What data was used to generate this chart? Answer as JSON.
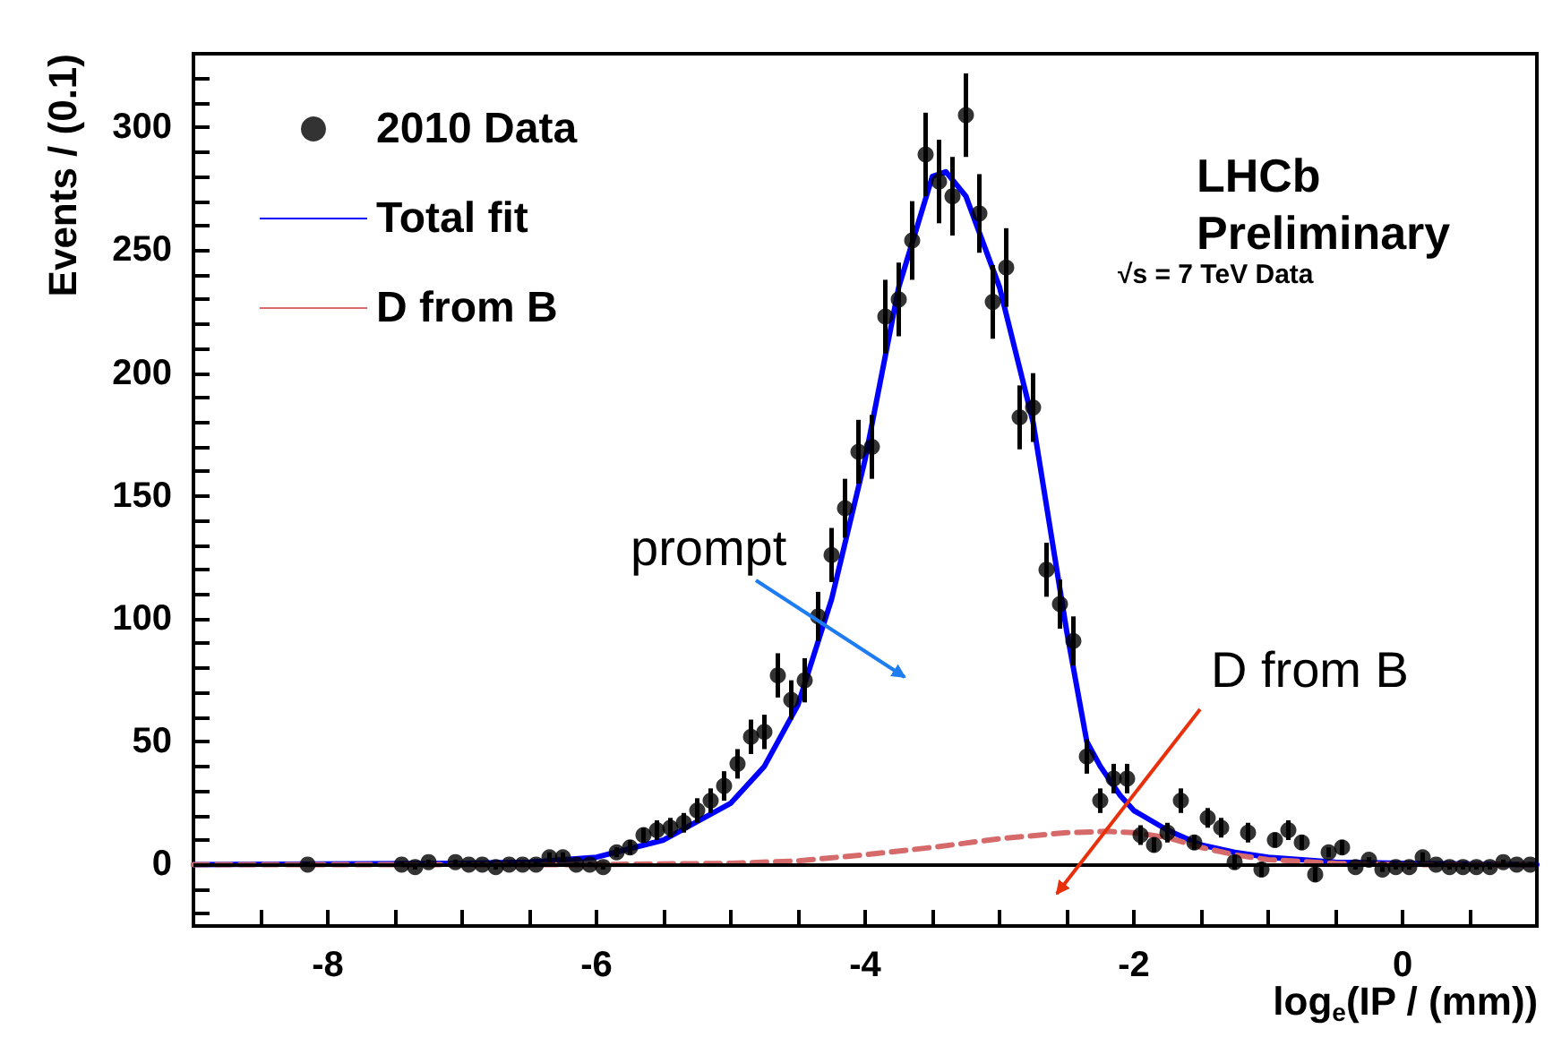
{
  "chart_data": {
    "type": "scatter",
    "xlabel": "log$_{e}$(IP / (mm))",
    "ylabel": "Events / (0.1)",
    "xlim": [
      -9,
      1
    ],
    "ylim": [
      -25,
      330
    ],
    "xticks": [
      {
        "value": -8.5,
        "label": null
      },
      -8,
      {
        "value": -7.5,
        "label": null
      },
      {
        "value": -7,
        "label": null
      },
      {
        "value": -6.5,
        "label": null
      },
      -6,
      {
        "value": -5.5,
        "label": null
      },
      {
        "value": -5,
        "label": null
      },
      {
        "value": -4.5,
        "label": null
      },
      -4,
      {
        "value": -3.5,
        "label": null
      },
      {
        "value": -3,
        "label": null
      },
      {
        "value": -2.5,
        "label": null
      },
      -2,
      {
        "value": -1.5,
        "label": null
      },
      {
        "value": -1,
        "label": null
      },
      {
        "value": -0.5,
        "label": null
      },
      0,
      {
        "value": 0.5,
        "label": null
      }
    ],
    "yticks": [
      {
        "value": -20,
        "label": null
      },
      {
        "value": -10,
        "label": null
      },
      0,
      {
        "value": 10,
        "label": null
      },
      {
        "value": 20,
        "label": null
      },
      {
        "value": 30,
        "label": null
      },
      {
        "value": 40,
        "label": null
      },
      50,
      {
        "value": 60,
        "label": null
      },
      {
        "value": 70,
        "label": null
      },
      {
        "value": 80,
        "label": null
      },
      {
        "value": 90,
        "label": null
      },
      100,
      {
        "value": 110,
        "label": null
      },
      {
        "value": 120,
        "label": null
      },
      {
        "value": 130,
        "label": null
      },
      {
        "value": 140,
        "label": null
      },
      150,
      {
        "value": 160,
        "label": null
      },
      {
        "value": 170,
        "label": null
      },
      {
        "value": 180,
        "label": null
      },
      {
        "value": 190,
        "label": null
      },
      200,
      {
        "value": 210,
        "label": null
      },
      {
        "value": 220,
        "label": null
      },
      {
        "value": 230,
        "label": null
      },
      {
        "value": 240,
        "label": null
      },
      250,
      {
        "value": 260,
        "label": null
      },
      {
        "value": 270,
        "label": null
      },
      {
        "value": 280,
        "label": null
      },
      {
        "value": 290,
        "label": null
      },
      300,
      {
        "value": 310,
        "label": null
      },
      {
        "value": 320,
        "label": null
      }
    ],
    "legend": "top left",
    "grid": false,
    "ref_lines": [
      {
        "axis": "y",
        "value": 0,
        "color": "#000000"
      }
    ],
    "annotations": [
      "LHCb Preliminary",
      "√s = 7 TeV Data",
      "prompt",
      "D from B"
    ],
    "series": [
      {
        "name": "2010 Data",
        "color": "#000000",
        "marker": "circle",
        "x": [
          -8.15,
          -7.45,
          -7.35,
          -7.25,
          -7.05,
          -6.95,
          -6.85,
          -6.75,
          -6.65,
          -6.55,
          -6.45,
          -6.35,
          -6.25,
          -6.15,
          -6.05,
          -5.95,
          -5.85,
          -5.75,
          -5.65,
          -5.55,
          -5.45,
          -5.35,
          -5.25,
          -5.15,
          -5.05,
          -4.95,
          -4.85,
          -4.75,
          -4.65,
          -4.55,
          -4.45,
          -4.35,
          -4.25,
          -4.15,
          -4.05,
          -3.95,
          -3.85,
          -3.75,
          -3.65,
          -3.55,
          -3.45,
          -3.35,
          -3.25,
          -3.15,
          -3.05,
          -2.95,
          -2.85,
          -2.75,
          -2.65,
          -2.55,
          -2.45,
          -2.35,
          -2.25,
          -2.15,
          -2.05,
          -1.95,
          -1.85,
          -1.75,
          -1.65,
          -1.55,
          -1.45,
          -1.35,
          -1.25,
          -1.15,
          -1.05,
          -0.95,
          -0.85,
          -0.75,
          -0.65,
          -0.55,
          -0.45,
          -0.35,
          -0.25,
          -0.15,
          -0.05,
          0.05,
          0.15,
          0.25,
          0.35,
          0.45,
          0.55,
          0.65,
          0.75,
          0.85,
          0.95
        ],
        "values": [
          0,
          0,
          -1,
          1,
          1,
          0,
          0,
          -1,
          0,
          0,
          0,
          3,
          3,
          0,
          0,
          -1,
          5,
          7,
          12,
          14,
          15,
          17,
          22,
          26,
          32,
          41,
          52,
          54,
          77,
          67,
          75,
          101,
          126,
          145,
          168,
          170,
          223,
          230,
          254,
          289,
          278,
          272,
          305,
          265,
          229,
          243,
          182,
          186,
          120,
          106,
          91,
          44,
          26,
          35,
          35,
          12,
          8,
          13,
          26,
          9,
          19,
          15,
          1,
          13,
          -2,
          10,
          14,
          9,
          -4,
          5,
          7,
          -1,
          2,
          -2,
          -1,
          -1,
          3,
          0,
          -1,
          -1,
          -1,
          -1,
          1,
          0,
          0
        ],
        "errors": [
          1,
          1,
          1,
          1,
          1,
          1,
          1,
          1,
          1,
          1,
          1,
          2,
          2,
          1,
          1,
          1,
          2,
          3,
          3,
          4,
          4,
          4,
          5,
          5,
          6,
          6,
          7,
          7,
          9,
          8,
          9,
          10,
          11,
          12,
          13,
          13,
          15,
          15,
          16,
          17,
          17,
          16,
          17,
          16,
          15,
          16,
          13,
          14,
          11,
          10,
          10,
          7,
          5,
          6,
          6,
          4,
          3,
          4,
          5,
          3,
          4,
          4,
          3,
          4,
          3,
          3,
          4,
          3,
          3,
          2,
          3,
          1,
          1,
          1,
          1,
          1,
          2,
          1,
          1,
          1,
          1,
          1,
          1,
          1,
          1
        ]
      },
      {
        "name": "Total fit",
        "type": "line",
        "color": "#0000ff",
        "line_style": "solid",
        "marker": "none",
        "x": [
          -9,
          -7,
          -6.5,
          -6,
          -5.5,
          -5,
          -4.75,
          -4.5,
          -4.25,
          -4,
          -3.75,
          -3.5,
          -3.4,
          -3.25,
          -3,
          -2.75,
          -2.5,
          -2.35,
          -2.25,
          -2.1,
          -2,
          -1.75,
          -1.5,
          -1.25,
          -1,
          -0.5,
          0,
          1
        ],
        "values": [
          0,
          0.5,
          1,
          3,
          10,
          25,
          40,
          65,
          108,
          165,
          235,
          280,
          282,
          272,
          235,
          180,
          95,
          50,
          40,
          28,
          22,
          14,
          8,
          5,
          3,
          1,
          0.5,
          0
        ]
      },
      {
        "name": "D from B",
        "type": "line",
        "color": "#d66a6a",
        "line_style": "dashed",
        "marker": "none",
        "x": [
          -9,
          -6,
          -5,
          -4.5,
          -4,
          -3.5,
          -3,
          -2.5,
          -2.2,
          -2,
          -1.75,
          -1.5,
          -1.25,
          -1,
          -0.5,
          0,
          1
        ],
        "values": [
          0,
          0,
          0.5,
          1.5,
          4,
          7,
          10.5,
          13,
          13.5,
          13,
          11,
          7,
          4,
          2,
          0.5,
          0,
          0
        ]
      }
    ]
  }
}
